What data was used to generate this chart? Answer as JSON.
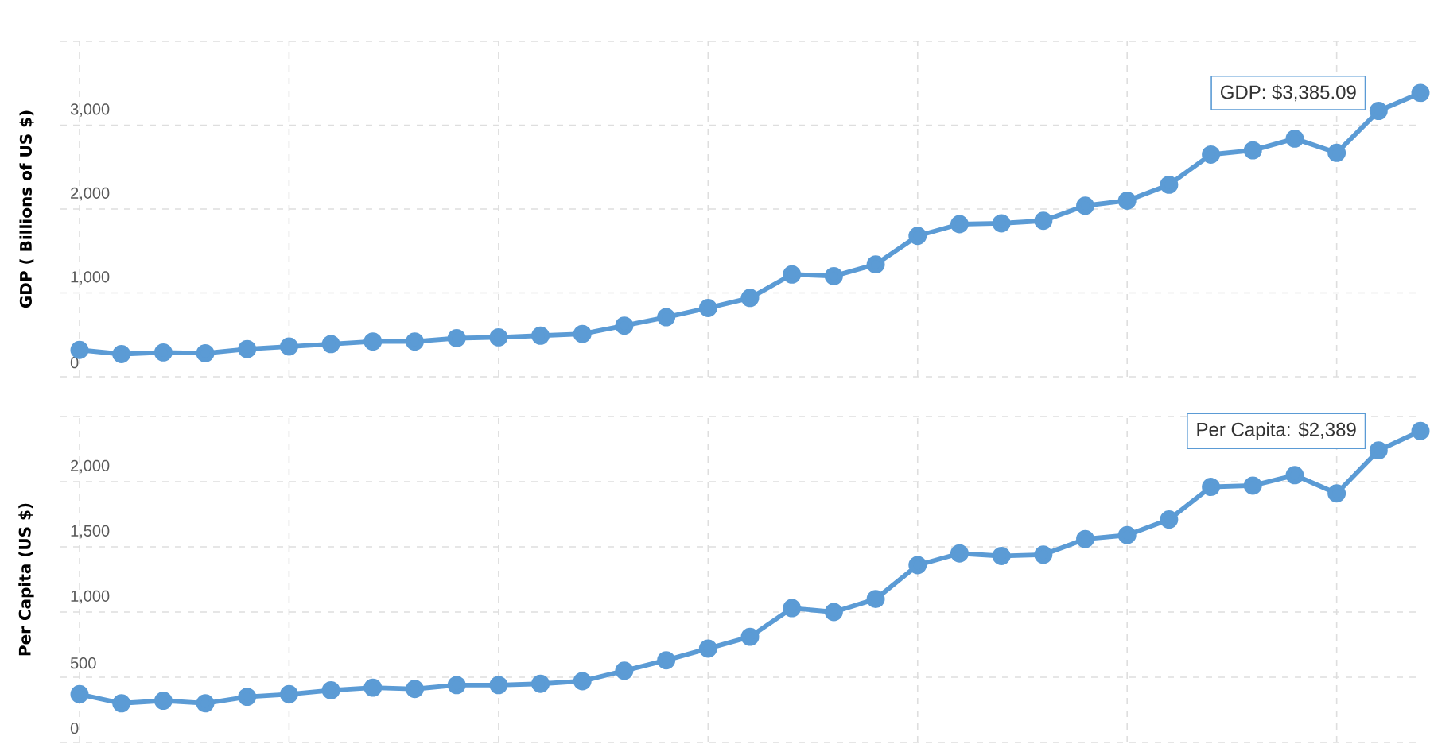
{
  "chart_data": [
    {
      "type": "line",
      "ylabel": "GDP ( Billions of US $)",
      "categories": [
        null,
        null,
        null,
        null,
        null,
        null,
        null,
        null,
        null,
        null,
        null,
        null,
        null,
        null,
        null,
        null,
        null,
        null,
        null,
        null,
        null,
        null,
        null,
        null,
        null,
        null,
        null,
        null,
        null,
        null,
        null,
        null,
        null
      ],
      "values": [
        320,
        270,
        290,
        280,
        330,
        360,
        390,
        420,
        420,
        460,
        470,
        490,
        510,
        610,
        710,
        820,
        940,
        1220,
        1200,
        1340,
        1680,
        1820,
        1830,
        1860,
        2040,
        2100,
        2290,
        2650,
        2700,
        2840,
        2670,
        3170,
        3385.09
      ],
      "color": "#5b9bd5",
      "marker": "circle",
      "grid": true,
      "tick_labels": "y",
      "ylim": [
        0,
        4000
      ],
      "yticks": [
        0,
        {
          "value": 1000,
          "label": "1,000"
        },
        {
          "value": 2000,
          "label": "2,000"
        },
        {
          "value": 3000,
          "label": "3,000"
        },
        {
          "value": 4000,
          "label": null
        }
      ],
      "annotations": [
        "GDP: $3,385.09"
      ]
    },
    {
      "type": "line",
      "ylabel": "Per Capita (US $)",
      "categories": [
        null,
        null,
        null,
        null,
        null,
        null,
        null,
        null,
        null,
        null,
        null,
        null,
        null,
        null,
        null,
        null,
        null,
        null,
        null,
        null,
        null,
        null,
        null,
        null,
        null,
        null,
        null,
        null,
        null,
        null,
        null,
        null,
        null
      ],
      "values": [
        370,
        300,
        320,
        300,
        350,
        370,
        400,
        420,
        410,
        440,
        440,
        450,
        470,
        550,
        630,
        720,
        810,
        1030,
        1000,
        1100,
        1360,
        1450,
        1430,
        1440,
        1560,
        1590,
        1710,
        1960,
        1970,
        2050,
        1910,
        2240,
        2389
      ],
      "color": "#5b9bd5",
      "marker": "circle",
      "grid": true,
      "tick_labels": "y",
      "ylim": [
        0,
        2500
      ],
      "yticks": [
        0,
        500,
        {
          "value": 1000,
          "label": "1,000"
        },
        {
          "value": 1500,
          "label": "1,500"
        },
        {
          "value": 2000,
          "label": "2,000"
        },
        {
          "value": 2500,
          "label": null
        }
      ],
      "annotations": [
        "Per Capita: $2,389"
      ]
    }
  ]
}
